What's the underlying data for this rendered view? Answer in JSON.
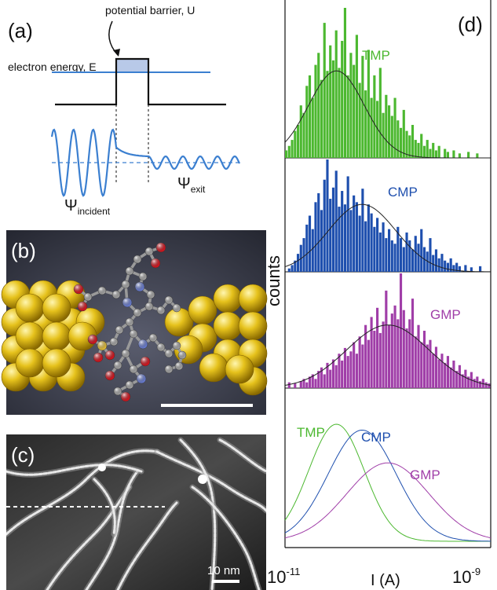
{
  "panels": {
    "a": {
      "label": "(a)",
      "barrier_label": "potential barrier, U",
      "energy_label": "electron energy, E",
      "psi_symbol": "Ψ",
      "psi_in_sub": "incident",
      "psi_out_sub": "exit",
      "colors": {
        "wave": "#3b7fd0",
        "barrier_fill": "#b8c9e8",
        "line": "#111111"
      }
    },
    "b": {
      "label": "(b)",
      "colors": {
        "gold": "#e6c21c",
        "gold_dark": "#9a7a05",
        "carbon": "#a8a8a8",
        "oxygen": "#d9141e",
        "nitrogen": "#6b7fd6",
        "sulfur": "#e8c33a"
      }
    },
    "c": {
      "label": "(c)",
      "scale_label": "10 nm"
    },
    "d": {
      "label": "(d)",
      "ylabel": "counts",
      "xlabel": "I (A)",
      "xtick_left_base": "10",
      "xtick_left_exp": "-11",
      "xtick_right_base": "10",
      "xtick_right_exp": "-9"
    }
  },
  "chart_data": {
    "type": "bar",
    "xscale": "log",
    "xlim": [
      1e-11,
      1e-09
    ],
    "xlabel": "I (A)",
    "ylabel": "counts",
    "series": [
      {
        "name": "TMP",
        "color": "#4cb830",
        "fit_peak_log10": -10.5,
        "fit_sigma_log10": 0.27,
        "fit_height": 0.58,
        "values": [
          0.05,
          0.08,
          0.12,
          0.18,
          0.22,
          0.35,
          0.3,
          0.48,
          0.55,
          0.4,
          0.62,
          0.7,
          0.52,
          0.9,
          0.58,
          0.75,
          0.65,
          0.85,
          0.6,
          0.78,
          1.0,
          0.55,
          0.7,
          0.62,
          0.82,
          0.5,
          0.68,
          0.45,
          0.72,
          0.4,
          0.55,
          0.38,
          0.6,
          0.3,
          0.42,
          0.35,
          0.28,
          0.4,
          0.25,
          0.2,
          0.32,
          0.18,
          0.15,
          0.22,
          0.12,
          0.1,
          0.16,
          0.08,
          0.12,
          0.06,
          0.1,
          0.05,
          0.08,
          0.0,
          0.06,
          0.04,
          0.0,
          0.05,
          0.0,
          0.03,
          0.0,
          0.0,
          0.04,
          0.0,
          0.0,
          0.03,
          0.0,
          0.0,
          0.0,
          0.0
        ]
      },
      {
        "name": "CMP",
        "color": "#1e4fae",
        "fit_peak_log10": -10.25,
        "fit_sigma_log10": 0.33,
        "fit_height": 0.6,
        "values": [
          0.0,
          0.03,
          0.06,
          0.1,
          0.16,
          0.24,
          0.3,
          0.42,
          0.5,
          0.38,
          0.62,
          0.7,
          0.55,
          0.82,
          1.0,
          0.65,
          0.75,
          0.9,
          0.58,
          0.72,
          0.6,
          0.85,
          0.55,
          0.68,
          0.62,
          0.5,
          0.74,
          0.45,
          0.6,
          0.52,
          0.4,
          0.48,
          0.35,
          0.44,
          0.3,
          0.38,
          0.28,
          0.25,
          0.4,
          0.3,
          0.22,
          0.35,
          0.28,
          0.2,
          0.32,
          0.25,
          0.38,
          0.22,
          0.18,
          0.3,
          0.15,
          0.2,
          0.12,
          0.16,
          0.1,
          0.08,
          0.12,
          0.06,
          0.08,
          0.05,
          0.0,
          0.06,
          0.0,
          0.04,
          0.0,
          0.0,
          0.05,
          0.0,
          0.0,
          0.0
        ]
      },
      {
        "name": "GMP",
        "color": "#a03ea8",
        "fit_peak_log10": -10.0,
        "fit_sigma_log10": 0.4,
        "fit_height": 0.55,
        "values": [
          0.0,
          0.05,
          0.0,
          0.04,
          0.0,
          0.06,
          0.08,
          0.05,
          0.1,
          0.12,
          0.08,
          0.15,
          0.18,
          0.12,
          0.22,
          0.16,
          0.25,
          0.2,
          0.3,
          0.24,
          0.35,
          0.28,
          0.32,
          0.4,
          0.3,
          0.45,
          0.38,
          0.55,
          0.42,
          0.62,
          0.5,
          0.7,
          0.48,
          0.58,
          0.85,
          0.55,
          0.65,
          0.72,
          0.6,
          1.0,
          0.68,
          0.52,
          0.6,
          0.78,
          0.45,
          0.55,
          0.4,
          0.5,
          0.38,
          0.42,
          0.3,
          0.36,
          0.25,
          0.3,
          0.22,
          0.28,
          0.18,
          0.24,
          0.15,
          0.2,
          0.12,
          0.16,
          0.1,
          0.14,
          0.08,
          0.1,
          0.06,
          0.08,
          0.05,
          0.04
        ]
      }
    ]
  }
}
